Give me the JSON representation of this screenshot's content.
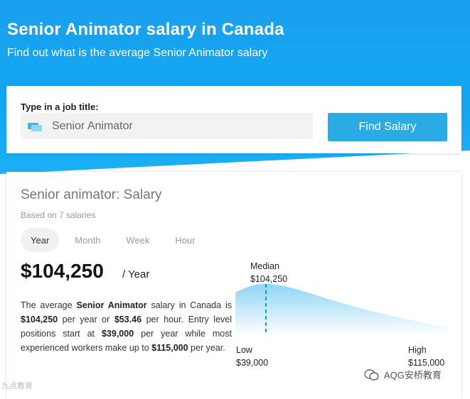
{
  "header": {
    "title": "Senior Animator salary in Canada",
    "subtitle": "Find out what is the average Senior Animator salary"
  },
  "search": {
    "label": "Type in a job title:",
    "value": "Senior Animator",
    "button_label": "Find Salary",
    "icon": "job-title-icon"
  },
  "salary": {
    "title": "Senior animator: Salary",
    "based_on": "Based on 7 salaries",
    "tabs": [
      {
        "label": "Year",
        "active": true
      },
      {
        "label": "Month",
        "active": false
      },
      {
        "label": "Week",
        "active": false
      },
      {
        "label": "Hour",
        "active": false
      }
    ],
    "amount": "$104,250",
    "period": "/ Year",
    "description": {
      "p1": "The average ",
      "job": "Senior Animator",
      "p2": " salary in Canada is ",
      "yearly": "$104,250",
      "p3": " per year or ",
      "hourly": "$53.46",
      "p4": " per hour. Entry level positions start at ",
      "entry": "$39,000",
      "p5": " per year while most experienced workers make up to ",
      "max": "$115,000",
      "p6": " per year."
    },
    "distribution": {
      "median_label": "Median",
      "median_value": "$104,250",
      "low_label": "Low",
      "low_value": "$39,000",
      "high_label": "High",
      "high_value": "$115,000"
    }
  },
  "watermarks": {
    "left": "九点教育",
    "right": "AQG安桥教育"
  },
  "colors": {
    "hero_blue": "#1aa0ee",
    "button_blue": "#2aabe6",
    "median_line": "#1c9aa8"
  }
}
